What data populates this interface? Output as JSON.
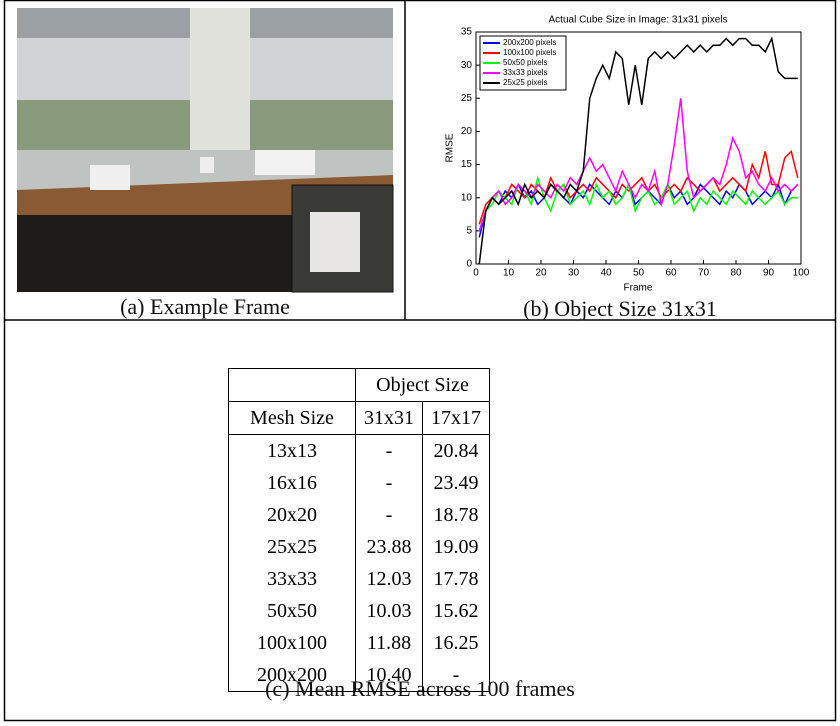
{
  "panel_a": {
    "caption": "(a) Example Frame"
  },
  "chart_data": {
    "type": "line",
    "title": "Actual Cube Size in Image: 31x31 pixels",
    "xlabel": "Frame",
    "ylabel": "RMSE",
    "x": [
      1,
      3,
      5,
      7,
      9,
      11,
      13,
      15,
      17,
      19,
      21,
      23,
      25,
      27,
      29,
      31,
      33,
      35,
      37,
      39,
      41,
      43,
      45,
      47,
      49,
      51,
      53,
      55,
      57,
      59,
      61,
      63,
      65,
      67,
      69,
      71,
      73,
      75,
      77,
      79,
      81,
      83,
      85,
      87,
      89,
      91,
      93,
      95,
      97,
      99
    ],
    "series": [
      {
        "name": "200x200 pixels",
        "color": "#0000ff",
        "values": [
          4,
          8,
          10,
          9,
          11,
          10,
          12,
          10,
          11,
          9,
          10,
          12,
          11,
          10,
          9,
          11,
          10,
          12,
          11,
          10,
          9,
          11,
          10,
          12,
          9,
          10,
          11,
          10,
          9,
          12,
          10,
          11,
          9,
          10,
          12,
          11,
          10,
          9,
          11,
          10,
          12,
          11,
          9,
          10,
          11,
          10,
          12,
          9,
          11,
          12
        ]
      },
      {
        "name": "100x100 pixels",
        "color": "#ff0000",
        "values": [
          6,
          9,
          10,
          11,
          10,
          12,
          11,
          10,
          12,
          11,
          10,
          13,
          11,
          12,
          10,
          11,
          12,
          11,
          13,
          12,
          11,
          10,
          12,
          11,
          12,
          13,
          11,
          12,
          10,
          11,
          12,
          11,
          13,
          12,
          11,
          12,
          13,
          11,
          12,
          13,
          12,
          11,
          15,
          13,
          17,
          12,
          12,
          16,
          17,
          13
        ]
      },
      {
        "name": "50x50 pixels",
        "color": "#00ff00",
        "values": [
          5,
          8,
          9,
          11,
          10,
          9,
          12,
          11,
          9,
          13,
          10,
          8,
          11,
          12,
          9,
          10,
          11,
          9,
          12,
          10,
          11,
          9,
          10,
          12,
          8,
          10,
          11,
          9,
          10,
          12,
          9,
          10,
          11,
          8,
          10,
          9,
          11,
          10,
          9,
          11,
          10,
          9,
          11,
          10,
          9,
          10,
          11,
          9,
          10,
          10
        ]
      },
      {
        "name": "33x33 pixels",
        "color": "#ff00ff",
        "values": [
          5,
          8,
          10,
          11,
          9,
          10,
          12,
          11,
          10,
          12,
          11,
          10,
          12,
          11,
          13,
          12,
          14,
          16,
          14,
          15,
          13,
          11,
          14,
          12,
          10,
          12,
          11,
          14,
          9,
          12,
          18,
          25,
          14,
          10,
          11,
          12,
          13,
          12,
          15,
          19,
          17,
          13,
          14,
          12,
          11,
          13,
          11,
          12,
          11,
          12
        ]
      },
      {
        "name": "25x25 pixels",
        "color": "#000000",
        "values": [
          0,
          8,
          10,
          9,
          10,
          11,
          9,
          12,
          10,
          11,
          10,
          12,
          11,
          10,
          12,
          11,
          14,
          25,
          28,
          30,
          28,
          32,
          31,
          24,
          30,
          24,
          31,
          32,
          31,
          32,
          31,
          32,
          33,
          32,
          33,
          32,
          33,
          33,
          34,
          33,
          34,
          34,
          33,
          33,
          32,
          34,
          29,
          28,
          28,
          28
        ]
      }
    ],
    "xlim": [
      0,
      100
    ],
    "ylim": [
      0,
      35
    ],
    "xticks": [
      0,
      10,
      20,
      30,
      40,
      50,
      60,
      70,
      80,
      90,
      100
    ],
    "yticks": [
      0,
      5,
      10,
      15,
      20,
      25,
      30,
      35
    ],
    "legend": "upper left"
  },
  "panel_b": {
    "caption": "(b) Object Size 31x31"
  },
  "table": {
    "group_header": "Object Size",
    "columns": [
      "Mesh Size",
      "31x31",
      "17x17"
    ],
    "rows": [
      [
        "13x13",
        "-",
        "20.84"
      ],
      [
        "16x16",
        "-",
        "23.49"
      ],
      [
        "20x20",
        "-",
        "18.78"
      ],
      [
        "25x25",
        "23.88",
        "19.09"
      ],
      [
        "33x33",
        "12.03",
        "17.78"
      ],
      [
        "50x50",
        "10.03",
        "15.62"
      ],
      [
        "100x100",
        "11.88",
        "16.25"
      ],
      [
        "200x200",
        "10.40",
        "-"
      ]
    ]
  },
  "panel_c": {
    "caption": "(c) Mean RMSE across 100 frames"
  }
}
